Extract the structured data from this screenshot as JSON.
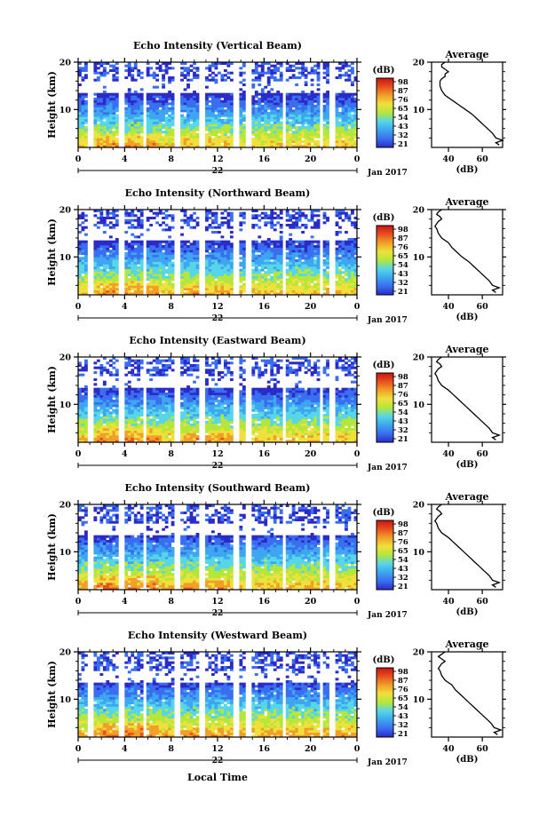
{
  "figure": {
    "xlabel": "Local Time",
    "date_label": "Jan 2017",
    "colormap": [
      "#ffffff",
      "#2b2bc8",
      "#3a6ef0",
      "#3ea6f0",
      "#56d6e6",
      "#b4e63c",
      "#f0e03c",
      "#f0a028",
      "#e8501e",
      "#c81414"
    ]
  },
  "chart_data": [
    {
      "type": "heatmap",
      "title": "Echo Intensity (Vertical Beam)",
      "ylabel": "Height (km)",
      "x_ticks": [
        "0",
        "4",
        "8",
        "12",
        "16",
        "20",
        "0"
      ],
      "xlim": [
        0,
        24
      ],
      "day_label": "22",
      "ylim": [
        2,
        20
      ],
      "y_ticks": [
        "20",
        "10"
      ],
      "colorbar": {
        "label": "(dB)",
        "ticks": [
          "98",
          "87",
          "76",
          "65",
          "54",
          "43",
          "32",
          "21"
        ]
      },
      "data_gaps_hours": [
        1,
        3.8,
        5.7,
        8.5,
        10.6,
        13.6,
        14.7,
        17.7,
        20.9,
        21.8
      ],
      "average_profile": {
        "title": "Average",
        "xlabel": "(dB)",
        "xlim": [
          30,
          72
        ],
        "x_ticks": [
          "40",
          "60"
        ],
        "ylim": [
          2,
          20
        ],
        "y_ticks": [
          "20",
          "10"
        ],
        "heights_km": [
          20,
          19.5,
          19,
          18.5,
          18,
          17.5,
          17,
          16.5,
          16,
          15,
          14,
          13,
          12,
          11,
          10,
          9,
          8,
          7,
          6,
          5,
          4,
          3.5,
          3,
          2.5
        ],
        "values_db": [
          38,
          36,
          36,
          38,
          40,
          38,
          38,
          36,
          35,
          35,
          36,
          38,
          42,
          46,
          50,
          54,
          57,
          60,
          63,
          66,
          68,
          72,
          68,
          70
        ]
      }
    },
    {
      "type": "heatmap",
      "title": "Echo Intensity (Northward Beam)",
      "ylabel": "Height (km)",
      "x_ticks": [
        "0",
        "4",
        "8",
        "12",
        "16",
        "20",
        "0"
      ],
      "xlim": [
        0,
        24
      ],
      "day_label": "22",
      "ylim": [
        2,
        20
      ],
      "y_ticks": [
        "20",
        "10"
      ],
      "colorbar": {
        "label": "(dB)",
        "ticks": [
          "98",
          "87",
          "76",
          "65",
          "54",
          "43",
          "32",
          "21"
        ]
      },
      "data_gaps_hours": [
        1,
        3.8,
        5.7,
        8.5,
        10.6,
        13.6,
        14.7,
        17.7,
        20.9,
        21.8
      ],
      "average_profile": {
        "title": "Average",
        "xlabel": "(dB)",
        "xlim": [
          30,
          72
        ],
        "x_ticks": [
          "40",
          "60"
        ],
        "ylim": [
          2,
          20
        ],
        "y_ticks": [
          "20",
          "10"
        ],
        "heights_km": [
          20,
          19.5,
          19,
          18.5,
          18,
          17.5,
          17,
          16.5,
          16,
          15,
          14,
          13,
          12,
          11,
          10,
          9,
          8,
          7,
          6,
          5,
          4,
          3.5,
          3,
          2.5
        ],
        "values_db": [
          36,
          34,
          33,
          35,
          36,
          34,
          33,
          32,
          33,
          34,
          36,
          40,
          42,
          45,
          48,
          52,
          55,
          58,
          61,
          64,
          66,
          70,
          66,
          68
        ]
      }
    },
    {
      "type": "heatmap",
      "title": "Echo Intensity (Eastward Beam)",
      "ylabel": "Height (km)",
      "x_ticks": [
        "0",
        "4",
        "8",
        "12",
        "16",
        "20",
        "0"
      ],
      "xlim": [
        0,
        24
      ],
      "day_label": "22",
      "ylim": [
        2,
        20
      ],
      "y_ticks": [
        "20",
        "10"
      ],
      "colorbar": {
        "label": "(dB)",
        "ticks": [
          "98",
          "87",
          "76",
          "65",
          "54",
          "43",
          "32",
          "21"
        ]
      },
      "data_gaps_hours": [
        1,
        3.8,
        5.7,
        8.5,
        10.6,
        13.6,
        14.7,
        17.7,
        20.9,
        21.8
      ],
      "average_profile": {
        "title": "Average",
        "xlabel": "(dB)",
        "xlim": [
          30,
          72
        ],
        "x_ticks": [
          "40",
          "60"
        ],
        "ylim": [
          2,
          20
        ],
        "y_ticks": [
          "20",
          "10"
        ],
        "heights_km": [
          20,
          19.5,
          19,
          18.5,
          18,
          17.5,
          17,
          16.5,
          16,
          15,
          14,
          13,
          12,
          11,
          10,
          9,
          8,
          7,
          6,
          5,
          4,
          3.5,
          3,
          2.5
        ],
        "values_db": [
          36,
          34,
          33,
          35,
          36,
          34,
          33,
          32,
          33,
          34,
          36,
          40,
          43,
          46,
          49,
          52,
          55,
          58,
          61,
          64,
          66,
          70,
          66,
          68
        ]
      }
    },
    {
      "type": "heatmap",
      "title": "Echo Intensity (Southward Beam)",
      "ylabel": "Height (km)",
      "x_ticks": [
        "0",
        "4",
        "8",
        "12",
        "16",
        "20",
        "0"
      ],
      "xlim": [
        0,
        24
      ],
      "day_label": "22",
      "ylim": [
        2,
        20
      ],
      "y_ticks": [
        "20",
        "10"
      ],
      "colorbar": {
        "label": "(dB)",
        "ticks": [
          "98",
          "87",
          "76",
          "65",
          "54",
          "43",
          "32",
          "21"
        ]
      },
      "data_gaps_hours": [
        1,
        3.8,
        5.7,
        8.5,
        10.6,
        13.6,
        14.7,
        17.7,
        20.9,
        21.8
      ],
      "average_profile": {
        "title": "Average",
        "xlabel": "(dB)",
        "xlim": [
          30,
          72
        ],
        "x_ticks": [
          "40",
          "60"
        ],
        "ylim": [
          2,
          20
        ],
        "y_ticks": [
          "20",
          "10"
        ],
        "heights_km": [
          20,
          19.5,
          19,
          18.5,
          18,
          17.5,
          17,
          16.5,
          16,
          15,
          14,
          13,
          12,
          11,
          10,
          9,
          8,
          7,
          6,
          5,
          4,
          3.5,
          3,
          2.5
        ],
        "values_db": [
          36,
          34,
          33,
          35,
          36,
          34,
          33,
          32,
          33,
          34,
          36,
          40,
          43,
          46,
          49,
          52,
          55,
          58,
          61,
          64,
          66,
          70,
          66,
          68
        ]
      }
    },
    {
      "type": "heatmap",
      "title": "Echo Intensity (Westward Beam)",
      "ylabel": "Height (km)",
      "x_ticks": [
        "0",
        "4",
        "8",
        "12",
        "16",
        "20",
        "0"
      ],
      "xlim": [
        0,
        24
      ],
      "day_label": "22",
      "ylim": [
        2,
        20
      ],
      "y_ticks": [
        "20",
        "10"
      ],
      "colorbar": {
        "label": "(dB)",
        "ticks": [
          "98",
          "87",
          "76",
          "65",
          "54",
          "43",
          "32",
          "21"
        ]
      },
      "data_gaps_hours": [
        1,
        3.8,
        5.7,
        8.5,
        10.6,
        13.6,
        14.7,
        17.7,
        20.9,
        21.8
      ],
      "average_profile": {
        "title": "Average",
        "xlabel": "(dB)",
        "xlim": [
          30,
          72
        ],
        "x_ticks": [
          "40",
          "60"
        ],
        "ylim": [
          2,
          20
        ],
        "y_ticks": [
          "20",
          "10"
        ],
        "heights_km": [
          20,
          19.5,
          19,
          18.5,
          18,
          17.5,
          17,
          16.5,
          16,
          15,
          14,
          13,
          12,
          11,
          10,
          9,
          8,
          7,
          6,
          5,
          4,
          3.5,
          3,
          2.5
        ],
        "values_db": [
          38,
          36,
          34,
          36,
          38,
          36,
          35,
          34,
          35,
          36,
          38,
          42,
          44,
          47,
          50,
          53,
          56,
          59,
          62,
          65,
          67,
          71,
          67,
          69
        ]
      }
    }
  ]
}
